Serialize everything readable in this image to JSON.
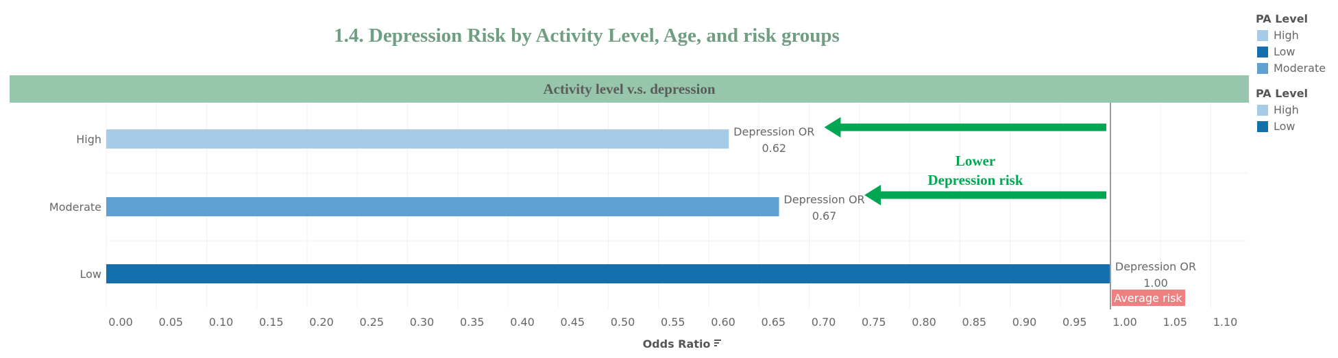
{
  "header": {
    "title": "1.4. Depression Risk by Activity Level, Age, and risk groups",
    "band_title": "Activity level v.s. depression"
  },
  "legends": [
    {
      "title": "PA Level",
      "items": [
        {
          "label": "High",
          "color": "#a6cbe6"
        },
        {
          "label": "Low",
          "color": "#1470ac"
        },
        {
          "label": "Moderate",
          "color": "#5fa2d2"
        }
      ]
    },
    {
      "title": "PA Level",
      "items": [
        {
          "label": "High",
          "color": "#a6cbe6"
        },
        {
          "label": "Low",
          "color": "#1470ac"
        }
      ]
    }
  ],
  "chart_data": {
    "type": "bar",
    "orientation": "horizontal",
    "categories": [
      "High",
      "Moderate",
      "Low"
    ],
    "values": [
      0.62,
      0.67,
      1.0
    ],
    "colors": [
      "#a6cbe6",
      "#5fa2d2",
      "#1470ac"
    ],
    "data_label_prefix": "Depression OR",
    "data_labels": [
      "0.62",
      "0.67",
      "1.00"
    ],
    "xlabel": "Odds Ratio",
    "xlim": [
      -0.015,
      1.14
    ],
    "xticks": [
      "0.00",
      "0.05",
      "0.10",
      "0.15",
      "0.20",
      "0.25",
      "0.30",
      "0.35",
      "0.40",
      "0.45",
      "0.50",
      "0.55",
      "0.60",
      "0.65",
      "0.70",
      "0.75",
      "0.80",
      "0.85",
      "0.90",
      "0.95",
      "1.00",
      "1.05",
      "1.10"
    ],
    "reference_line": {
      "x": 1.0,
      "label": "Average risk",
      "label_color": "#f08080"
    },
    "annotation": {
      "lines": [
        "Lower",
        "Depression risk"
      ],
      "color": "#00a651"
    },
    "arrows": [
      {
        "category": "High",
        "from": 1.0,
        "to": 0.715
      },
      {
        "category": "Moderate",
        "from": 1.0,
        "to": 0.755
      }
    ],
    "grid": "vertical"
  }
}
